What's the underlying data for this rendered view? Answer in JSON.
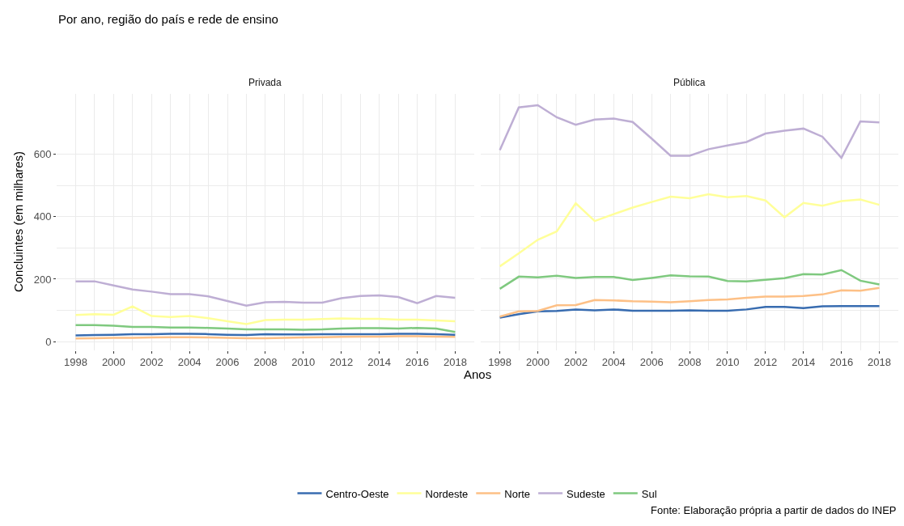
{
  "chart_data": [
    {
      "type": "line",
      "title": "Por ano, região do país e rede de ensino",
      "subtitle": "Privada",
      "xlabel": "Anos",
      "ylabel": "Concluintes (em milhares)",
      "legend": "bottom",
      "grid": true,
      "annotations": [
        "Fonte: Elaboração própria a partir de dados do INEP"
      ],
      "x": [
        1998,
        1999,
        2000,
        2001,
        2002,
        2003,
        2004,
        2005,
        2006,
        2007,
        2008,
        2009,
        2010,
        2011,
        2012,
        2013,
        2014,
        2015,
        2016,
        2017,
        2018
      ],
      "xlim": [
        1997,
        2019
      ],
      "xticks": [
        1998,
        2000,
        2002,
        2004,
        2006,
        2008,
        2010,
        2012,
        2014,
        2016,
        2018
      ],
      "ylim": [
        -27,
        794
      ],
      "yticks": [
        0,
        200,
        400,
        600
      ],
      "series": [
        {
          "name": "Centro-Oeste",
          "color": "#386cb0",
          "values": [
            20,
            21,
            22,
            24,
            24,
            25,
            25,
            24,
            22,
            21,
            24,
            23,
            23,
            24,
            24,
            24,
            24,
            25,
            25,
            24,
            22
          ]
        },
        {
          "name": "Nordeste",
          "color": "#ffff99",
          "values": [
            85,
            88,
            86,
            113,
            82,
            79,
            82,
            75,
            65,
            56,
            69,
            70,
            70,
            72,
            74,
            73,
            73,
            70,
            70,
            68,
            65
          ]
        },
        {
          "name": "Norte",
          "color": "#fdc086",
          "values": [
            10,
            11,
            12,
            12,
            13,
            14,
            14,
            13,
            12,
            11,
            11,
            12,
            13,
            14,
            15,
            16,
            16,
            17,
            17,
            16,
            15
          ]
        },
        {
          "name": "Sudeste",
          "color": "#beaed4",
          "values": [
            193,
            193,
            180,
            167,
            160,
            152,
            152,
            145,
            130,
            115,
            126,
            127,
            125,
            125,
            139,
            146,
            148,
            143,
            123,
            146,
            140
          ]
        },
        {
          "name": "Sul",
          "color": "#7fc97f",
          "values": [
            53,
            53,
            51,
            47,
            47,
            45,
            45,
            44,
            42,
            39,
            39,
            39,
            38,
            39,
            42,
            43,
            43,
            42,
            44,
            42,
            31
          ]
        }
      ]
    },
    {
      "type": "line",
      "subtitle": "Pública",
      "grid": true,
      "tick_labels": "x",
      "x": [
        1998,
        1999,
        2000,
        2001,
        2002,
        2003,
        2004,
        2005,
        2006,
        2007,
        2008,
        2009,
        2010,
        2011,
        2012,
        2013,
        2014,
        2015,
        2016,
        2017,
        2018
      ],
      "xlim": [
        1997,
        2019
      ],
      "xticks": [
        1998,
        2000,
        2002,
        2004,
        2006,
        2008,
        2010,
        2012,
        2014,
        2016,
        2018
      ],
      "ylim": [
        -27,
        794
      ],
      "yticks": [
        0,
        200,
        400,
        600
      ],
      "series": [
        {
          "name": "Centro-Oeste",
          "color": "#386cb0",
          "values": [
            77,
            88,
            97,
            98,
            103,
            100,
            103,
            99,
            99,
            99,
            100,
            99,
            99,
            103,
            111,
            111,
            107,
            113,
            114,
            114,
            114
          ]
        },
        {
          "name": "Nordeste",
          "color": "#ffff99",
          "values": [
            241,
            283,
            326,
            353,
            443,
            386,
            408,
            429,
            447,
            464,
            459,
            472,
            462,
            466,
            452,
            398,
            444,
            435,
            450,
            455,
            438
          ]
        },
        {
          "name": "Norte",
          "color": "#fdc086",
          "values": [
            80,
            97,
            98,
            116,
            117,
            133,
            132,
            129,
            128,
            126,
            129,
            133,
            135,
            140,
            144,
            144,
            146,
            151,
            164,
            163,
            172
          ]
        },
        {
          "name": "Sudeste",
          "color": "#beaed4",
          "values": [
            613,
            750,
            757,
            718,
            694,
            711,
            714,
            703,
            650,
            595,
            595,
            616,
            628,
            639,
            666,
            675,
            682,
            656,
            588,
            705,
            702
          ]
        },
        {
          "name": "Sul",
          "color": "#7fc97f",
          "values": [
            169,
            208,
            206,
            211,
            204,
            207,
            207,
            197,
            204,
            212,
            209,
            208,
            194,
            193,
            198,
            203,
            216,
            215,
            229,
            195,
            183
          ]
        }
      ]
    }
  ]
}
